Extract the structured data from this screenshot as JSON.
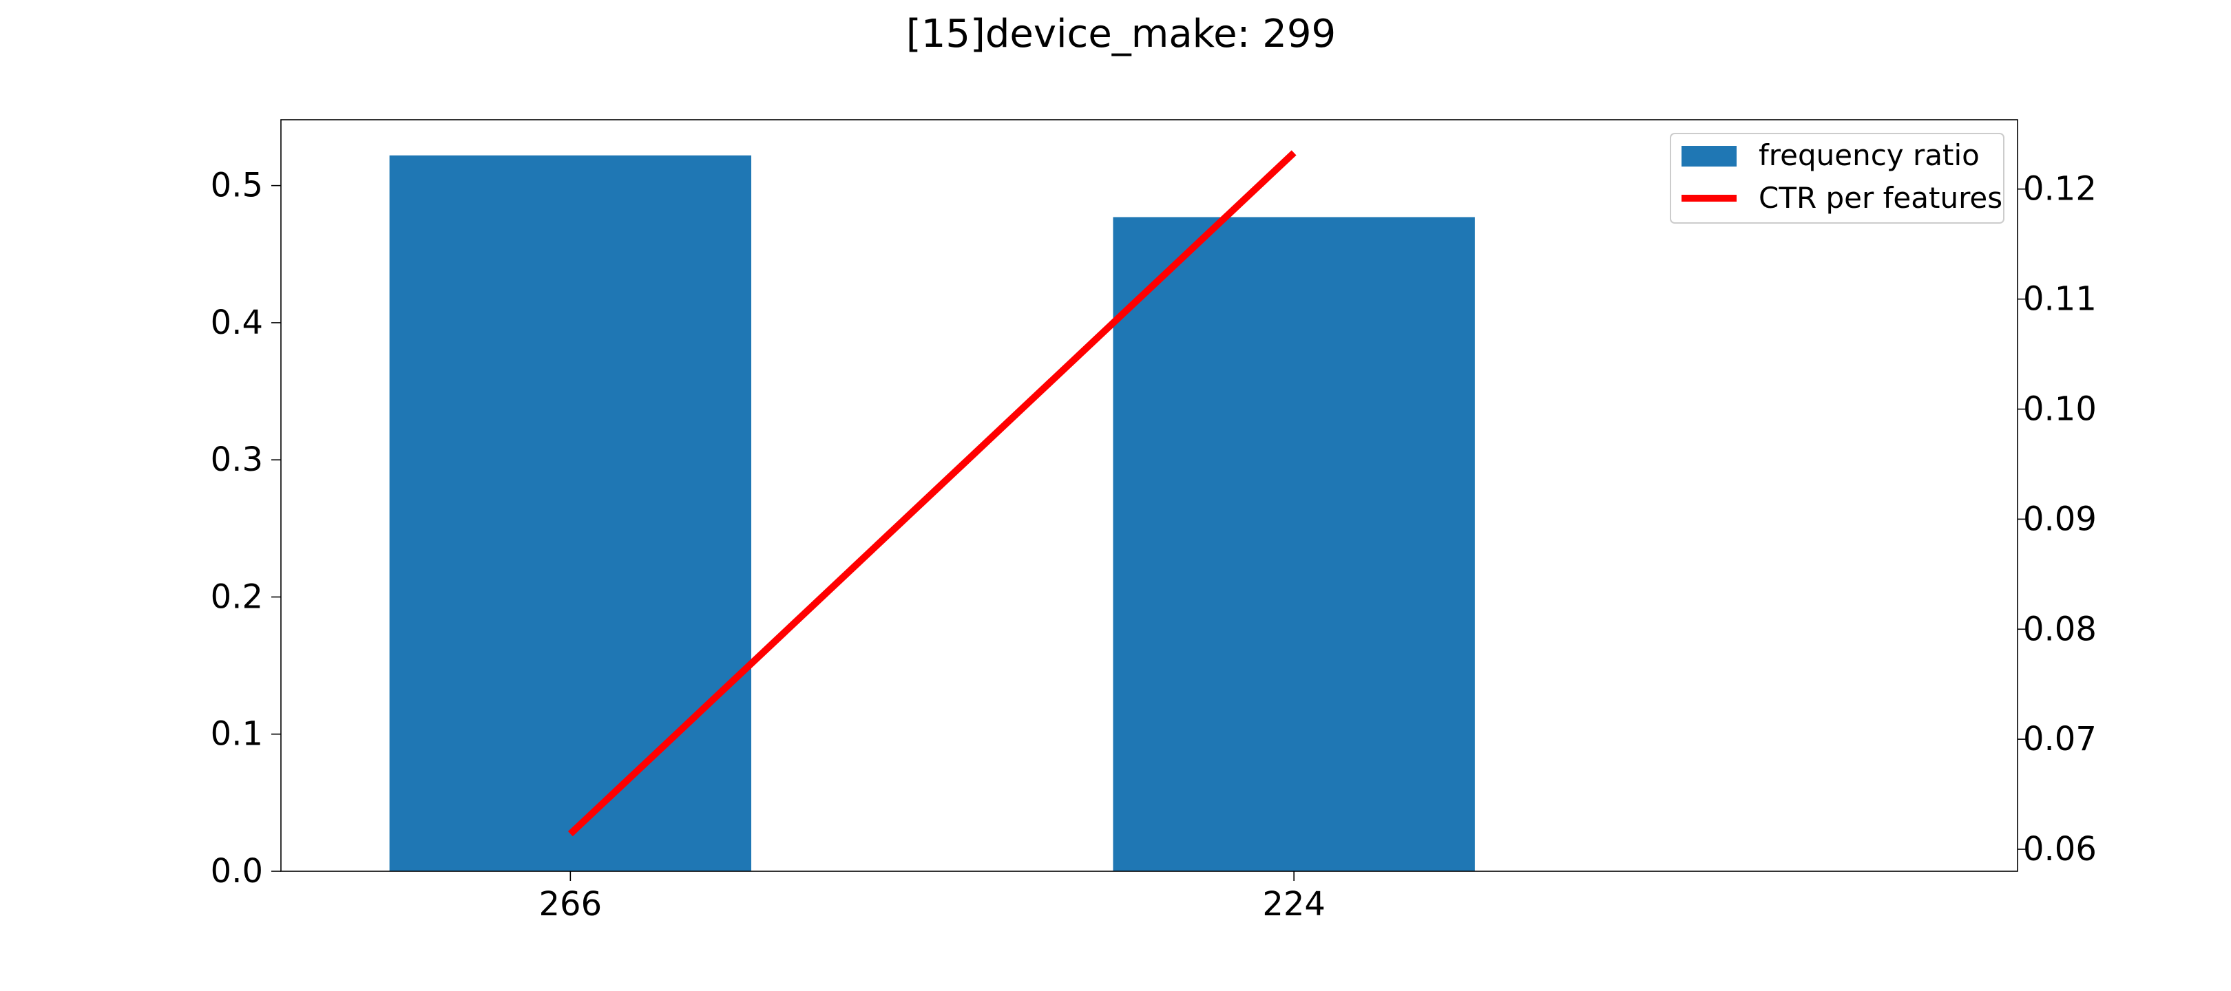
{
  "chart_data": {
    "type": "bar",
    "title": "[15]device_make: 299",
    "categories": [
      "266",
      "224"
    ],
    "series": [
      {
        "name": "frequency ratio",
        "type": "bar",
        "axis": "left",
        "color": "#1f77b4",
        "values": [
          0.522,
          0.477
        ]
      },
      {
        "name": "CTR per features",
        "type": "line",
        "axis": "right",
        "color": "#ff0000",
        "values": [
          0.0614,
          0.1233
        ]
      }
    ],
    "left_axis": {
      "ylim": [
        0,
        0.548
      ],
      "ticks": [
        "0.0",
        "0.1",
        "0.2",
        "0.3",
        "0.4",
        "0.5"
      ]
    },
    "right_axis": {
      "ylim": [
        0.058,
        0.1263
      ],
      "ticks": [
        "0.06",
        "0.07",
        "0.08",
        "0.09",
        "0.10",
        "0.11",
        "0.12"
      ]
    },
    "xlim": [
      -0.4,
      2.0
    ],
    "grid": false,
    "legend_position": "top-right"
  }
}
